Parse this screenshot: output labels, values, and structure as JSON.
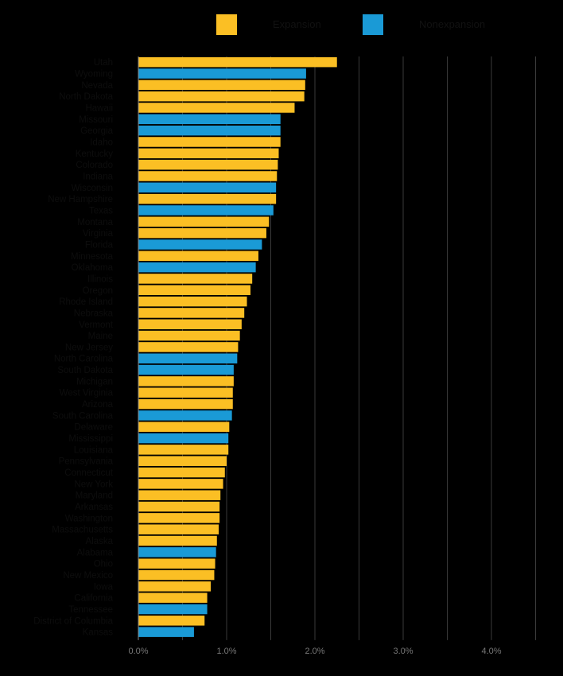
{
  "chart_data": {
    "type": "bar",
    "orientation": "horizontal",
    "colors": {
      "Expansion": "#FBBF24",
      "Nonexpansion": "#1A9AD6",
      "background": "#000000",
      "gridline": "#3a3a3a"
    },
    "legend": [
      {
        "name": "Expansion",
        "color": "#FBBF24"
      },
      {
        "name": "Nonexpansion",
        "color": "#1A9AD6"
      }
    ],
    "legend_placement": "top",
    "xlim": [
      0,
      4.5
    ],
    "x_ticks": [
      {
        "value": 0,
        "label": "0.0%"
      },
      {
        "value": 1,
        "label": "1.0%"
      },
      {
        "value": 2,
        "label": "2.0%"
      },
      {
        "value": 3,
        "label": "3.0%"
      },
      {
        "value": 4,
        "label": "4.0%"
      }
    ],
    "grid": true,
    "categories": [
      "Utah",
      "Wyoming",
      "Nevada",
      "North Dakota",
      "Hawaii",
      "Missouri",
      "Georgia",
      "Idaho",
      "Kentucky",
      "Colorado",
      "Indiana",
      "Wisconsin",
      "New Hampshire",
      "Texas",
      "Montana",
      "Virginia",
      "Florida",
      "Minnesota",
      "Oklahoma",
      "Illinois",
      "Oregon",
      "Rhode Island",
      "Nebraska",
      "Vermont",
      "Maine",
      "New Jersey",
      "North Carolina",
      "South Dakota",
      "Michigan",
      "West Virginia",
      "Arizona",
      "South Carolina",
      "Delaware",
      "Mississippi",
      "Louisiana",
      "Pennsylvania",
      "Connecticut",
      "New York",
      "Maryland",
      "Arkansas",
      "Washington",
      "Massachusetts",
      "Alaska",
      "Alabama",
      "Ohio",
      "New Mexico",
      "Iowa",
      "California",
      "Tennessee",
      "District of Columbia",
      "Kansas"
    ],
    "values": [
      2.25,
      1.9,
      1.89,
      1.88,
      1.77,
      1.61,
      1.61,
      1.61,
      1.59,
      1.58,
      1.57,
      1.56,
      1.56,
      1.53,
      1.48,
      1.45,
      1.4,
      1.36,
      1.33,
      1.29,
      1.27,
      1.23,
      1.2,
      1.17,
      1.15,
      1.13,
      1.12,
      1.08,
      1.08,
      1.07,
      1.07,
      1.06,
      1.03,
      1.02,
      1.02,
      1.0,
      0.98,
      0.96,
      0.93,
      0.92,
      0.92,
      0.91,
      0.89,
      0.88,
      0.87,
      0.86,
      0.82,
      0.78,
      0.78,
      0.75,
      0.63
    ],
    "groups": [
      "Expansion",
      "Nonexpansion",
      "Expansion",
      "Expansion",
      "Expansion",
      "Nonexpansion",
      "Nonexpansion",
      "Expansion",
      "Expansion",
      "Expansion",
      "Expansion",
      "Nonexpansion",
      "Expansion",
      "Nonexpansion",
      "Expansion",
      "Expansion",
      "Nonexpansion",
      "Expansion",
      "Nonexpansion",
      "Expansion",
      "Expansion",
      "Expansion",
      "Expansion",
      "Expansion",
      "Expansion",
      "Expansion",
      "Nonexpansion",
      "Nonexpansion",
      "Expansion",
      "Expansion",
      "Expansion",
      "Nonexpansion",
      "Expansion",
      "Nonexpansion",
      "Expansion",
      "Expansion",
      "Expansion",
      "Expansion",
      "Expansion",
      "Expansion",
      "Expansion",
      "Expansion",
      "Expansion",
      "Nonexpansion",
      "Expansion",
      "Expansion",
      "Expansion",
      "Expansion",
      "Nonexpansion",
      "Expansion",
      "Nonexpansion"
    ]
  }
}
